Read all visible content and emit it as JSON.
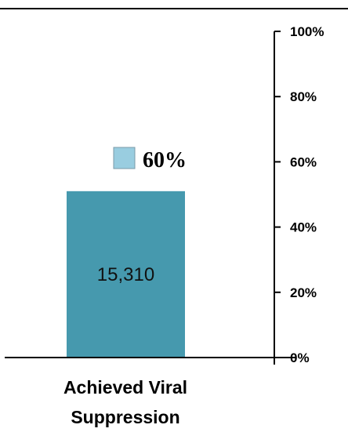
{
  "chart_data": {
    "type": "bar",
    "categories": [
      "Achieved Viral Suppression"
    ],
    "category_label_lines": [
      "Achieved Viral",
      "Suppression"
    ],
    "values": [
      51
    ],
    "bar_labels": [
      "15,310"
    ],
    "legend": {
      "value_label": "60%",
      "swatch_color": "#99CDE0"
    },
    "y_axis": {
      "ticks": [
        0,
        20,
        40,
        60,
        80,
        100
      ],
      "tick_labels": [
        "0%",
        "20%",
        "40%",
        "60%",
        "80%",
        "100%"
      ],
      "position": "right"
    },
    "ylim": [
      0,
      100
    ],
    "grid": false,
    "title": "",
    "xlabel": "",
    "ylabel": ""
  },
  "colors": {
    "bar": "#4699AE",
    "legend_swatch": "#99CDE0",
    "axis": "#000000"
  }
}
